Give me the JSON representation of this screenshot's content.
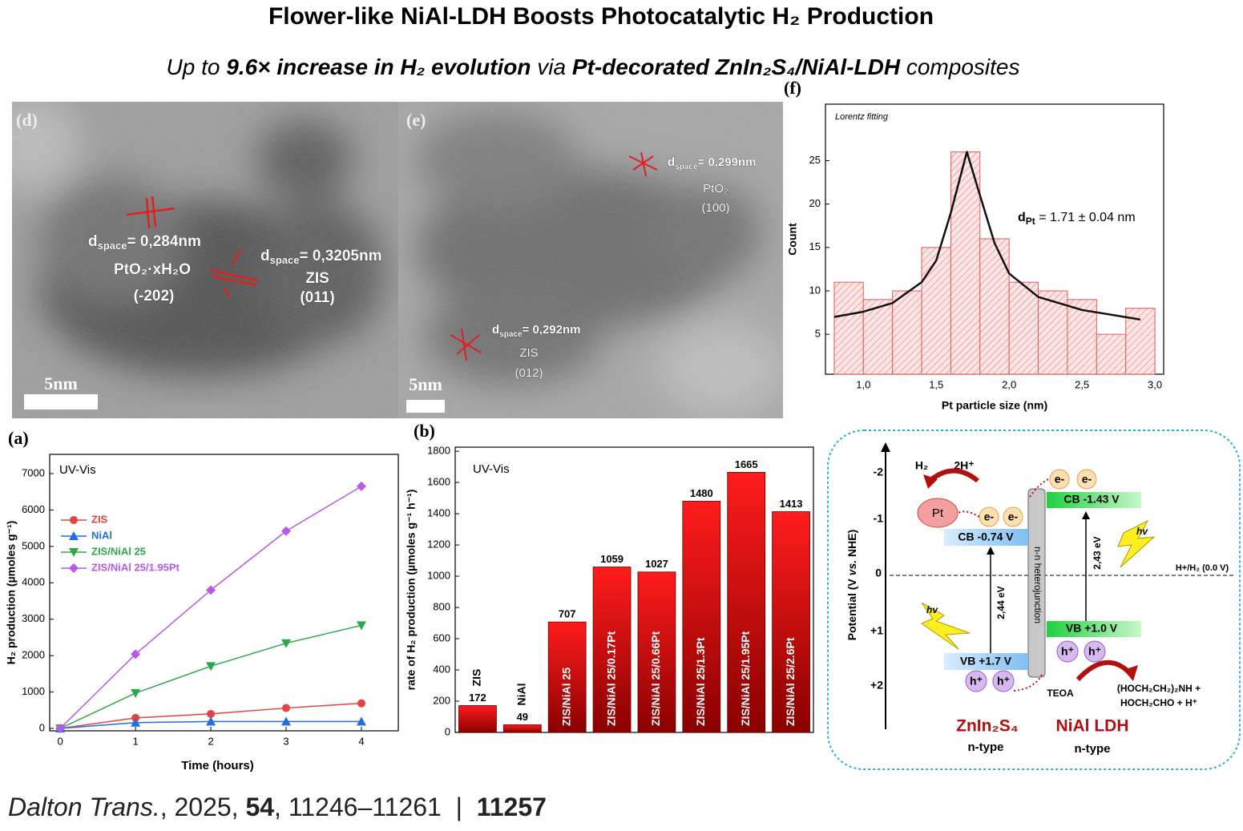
{
  "header": {
    "title": "Flower-like NiAl-LDH Boosts Photocatalytic H₂ Production",
    "subtitle_parts": [
      "Up to ",
      "9.6× increase in H₂ evolution",
      " via ",
      "Pt-decorated ZnIn₂S₄/NiAl-LDH",
      " composites"
    ]
  },
  "tem_d": {
    "panel_label": "(d)",
    "label1_parts": [
      "d",
      "space",
      "= 0,284nm"
    ],
    "label1_phase": "PtO₂·xH₂O",
    "label1_plane": "(-202)",
    "label2_parts": [
      "d",
      "space",
      "= 0,3205nm"
    ],
    "label2_phase": "ZIS",
    "label2_plane": "(011)",
    "scale": "5nm"
  },
  "tem_e": {
    "panel_label": "(e)",
    "label1_parts": [
      "d",
      "space",
      "= 0,299nm"
    ],
    "label1_phase": "PtO₂",
    "label1_plane": "(100)",
    "label2_parts": [
      "d",
      "space",
      "= 0,292nm"
    ],
    "label2_phase": "ZIS",
    "label2_plane": "(012)",
    "scale": "5nm"
  },
  "chart_data": [
    {
      "type": "histogram",
      "panel_label": "(f)",
      "annotation": "Lorentz fitting",
      "fit_label_parts": [
        "d",
        "Pt",
        " = 1.71 ± 0.04 nm"
      ],
      "xlabel": "Pt particle size (nm)",
      "ylabel": "Count",
      "bins": [
        0.8,
        1.0,
        1.2,
        1.4,
        1.6,
        1.8,
        2.0,
        2.2,
        2.4,
        2.6,
        2.8,
        3.0
      ],
      "counts": [
        11,
        9,
        10,
        15,
        26,
        16,
        11,
        10,
        9,
        5,
        8
      ],
      "color": "#e05a5a",
      "fit": {
        "x": [
          0.8,
          1.0,
          1.2,
          1.4,
          1.5,
          1.6,
          1.71,
          1.8,
          1.9,
          2.0,
          2.2,
          2.5,
          2.9
        ],
        "values": [
          7.0,
          7.6,
          8.6,
          11,
          13.5,
          19,
          26,
          21,
          15.5,
          12,
          9.3,
          7.8,
          6.7
        ],
        "color": "#111111"
      },
      "xlim": [
        0.74,
        3.06
      ],
      "ylim": [
        0.4,
        31.5
      ],
      "xticks": [
        {
          "value": 1.0,
          "label": "1,0"
        },
        {
          "value": 1.5,
          "label": "1,5"
        },
        {
          "value": 2.0,
          "label": "2,0"
        },
        {
          "value": 2.5,
          "label": "2,5"
        },
        {
          "value": 3.0,
          "label": "3,0"
        }
      ],
      "yticks": [
        5,
        10,
        15,
        20,
        25
      ]
    },
    {
      "type": "line",
      "panel_label": "(a)",
      "annotation": "UV-Vis",
      "xlabel": "Time (hours)",
      "ylabel": "H₂ production (µmoles g⁻¹)",
      "x": [
        0,
        1,
        2,
        3,
        4
      ],
      "series": [
        {
          "name": "ZIS",
          "color": "#e8423f",
          "marker": "circle",
          "values": [
            0,
            290,
            400,
            560,
            690
          ]
        },
        {
          "name": "NiAl",
          "color": "#1f6fe0",
          "marker": "triangle-up",
          "values": [
            0,
            160,
            190,
            190,
            190
          ]
        },
        {
          "name": "ZIS/NiAl 25",
          "color": "#2ca84a",
          "marker": "triangle-down",
          "values": [
            0,
            970,
            1710,
            2340,
            2830
          ]
        },
        {
          "name": "ZIS/NiAl 25/1.95Pt",
          "color": "#b55be8",
          "marker": "diamond",
          "values": [
            0,
            2040,
            3800,
            5420,
            6650
          ]
        }
      ],
      "legend": "upper left",
      "xlim": [
        -0.14,
        4.49
      ],
      "ylim": [
        -66,
        7528
      ],
      "xticks": [
        0,
        1,
        2,
        3,
        4
      ],
      "yticks": [
        0,
        1000,
        2000,
        3000,
        4000,
        5000,
        6000,
        7000
      ]
    },
    {
      "type": "bar",
      "panel_label": "(b)",
      "annotation": "UV-Vis",
      "ylabel": "rate of H₂ production (µmoles g⁻¹ h⁻¹)",
      "categories": [
        "ZIS",
        "NiAl",
        "ZIS/NiAl 25",
        "ZIS/NiAl 25/0.17Pt",
        "ZIS/NiAl 25/0.66Pt",
        "ZIS/NiAl 25/1.3Pt",
        "ZIS/NiAl 25/1.95Pt",
        "ZIS/NiAl 25/2.6Pt"
      ],
      "values": [
        172,
        49,
        707,
        1059,
        1027,
        1480,
        1665,
        1413
      ],
      "color": "#e01010",
      "ylim": [
        0,
        1826
      ],
      "yticks": [
        0,
        200,
        400,
        600,
        800,
        1000,
        1200,
        1400,
        1600,
        1800
      ]
    }
  ],
  "diagram": {
    "axis_label_parts": [
      "Potential (V ",
      "vs.",
      " NHE)"
    ],
    "ticks": [
      "-2",
      "-1",
      "0",
      "+1",
      "+2"
    ],
    "h2": "H₂",
    "proton": "2H⁺",
    "pt": "Pt",
    "electrons": [
      "e-",
      "e-",
      "e-",
      "e-"
    ],
    "cb_zis": "CB -0.74 V",
    "vb_zis": "VB +1.7 V",
    "cb_ldh": "CB -1.43 V",
    "vb_ldh": "VB +1.0 V",
    "holes": [
      "h⁺",
      "h⁺",
      "h⁺",
      "h⁺"
    ],
    "light": [
      "hv",
      "hv"
    ],
    "gap_zis": "2,44 eV",
    "gap_ldh": "2,43 eV",
    "reference": "H+/H₂ (0.0 V)",
    "junction": "n-n heterojunction",
    "teoa": "TEOA",
    "product1": "(HOCH₂CH₂)₂NH +",
    "product2": "HOCH₂CHO + H⁺",
    "zis_name": "ZnIn₂S₄",
    "zis_type": "n-type",
    "ldh_name": "NiAl LDH",
    "ldh_type": "n-type"
  },
  "footer": {
    "citation_parts": [
      "Dalton Trans.",
      ", 2025, ",
      "54",
      ", 11246–11261  |  ",
      "11257"
    ]
  }
}
